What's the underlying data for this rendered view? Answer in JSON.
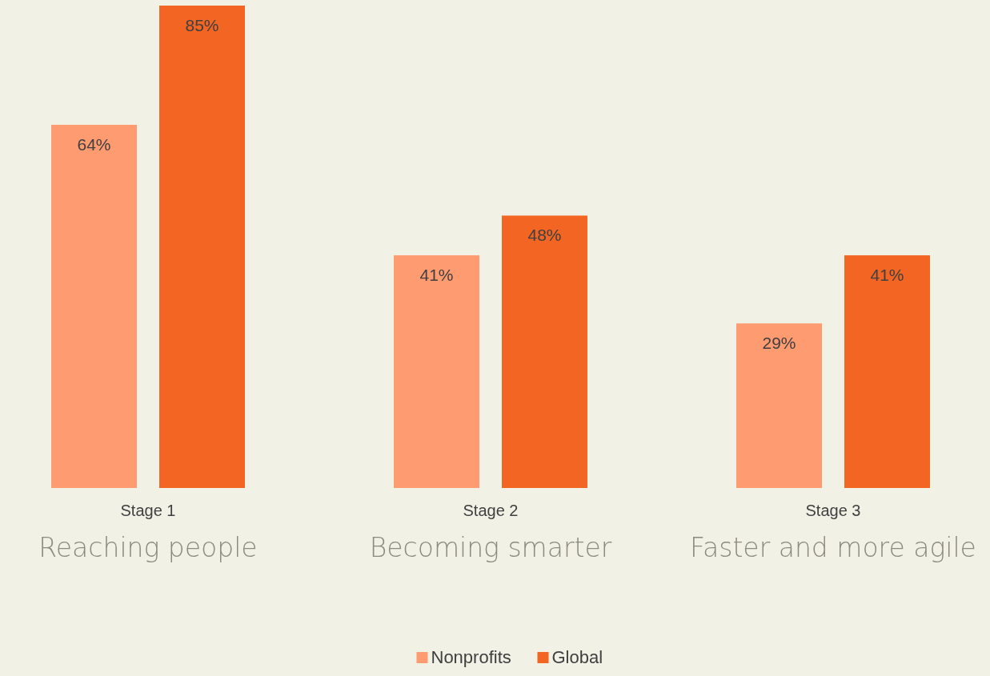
{
  "chart_data": {
    "type": "bar",
    "categories": [
      "Stage 1",
      "Stage 2",
      "Stage 3"
    ],
    "series": [
      {
        "name": "Nonprofits",
        "color": "#ff9b70",
        "values": [
          64,
          41,
          29
        ],
        "value_labels": [
          "64%",
          "41%",
          "29%"
        ]
      },
      {
        "name": "Global",
        "color": "#f26522",
        "values": [
          85,
          48,
          41
        ],
        "value_labels": [
          "85%",
          "48%",
          "41%"
        ]
      }
    ],
    "annotations": [
      "Reaching people",
      "Becoming smarter",
      "Faster and more agile"
    ],
    "legend": "bottom"
  }
}
